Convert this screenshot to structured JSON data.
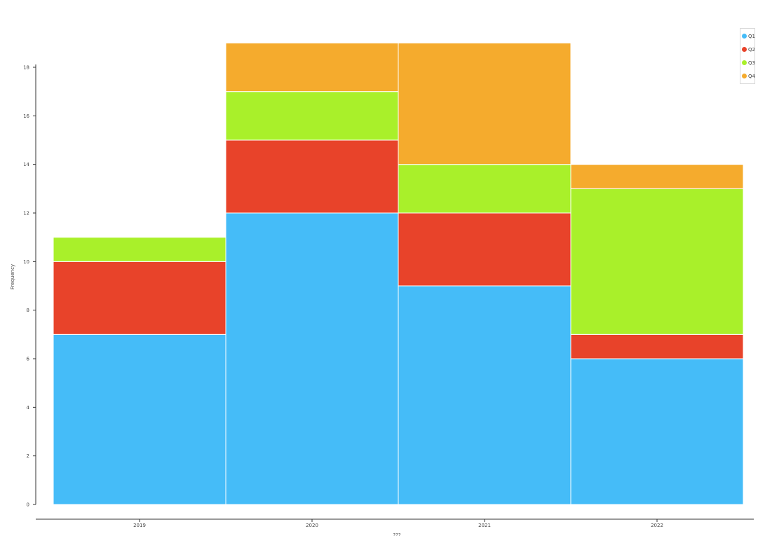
{
  "chart_data": {
    "type": "bar",
    "stacked": true,
    "title": "",
    "xlabel": "???",
    "ylabel": "Frequency",
    "categories": [
      "2019",
      "2020",
      "2021",
      "2022"
    ],
    "ylim": [
      0,
      18
    ],
    "yticks": [
      0,
      2,
      4,
      6,
      8,
      10,
      12,
      14,
      16,
      18
    ],
    "grid": false,
    "legend_position": "top-right",
    "series": [
      {
        "name": "Q1",
        "color": "#45bcf8",
        "values": [
          7,
          12,
          9,
          6
        ]
      },
      {
        "name": "Q2",
        "color": "#e8432a",
        "values": [
          3,
          3,
          3,
          1
        ]
      },
      {
        "name": "Q3",
        "color": "#a9f02a",
        "values": [
          1,
          2,
          2,
          6
        ]
      },
      {
        "name": "Q4",
        "color": "#f5ab2d",
        "values": [
          0,
          2,
          5,
          1
        ]
      }
    ]
  }
}
